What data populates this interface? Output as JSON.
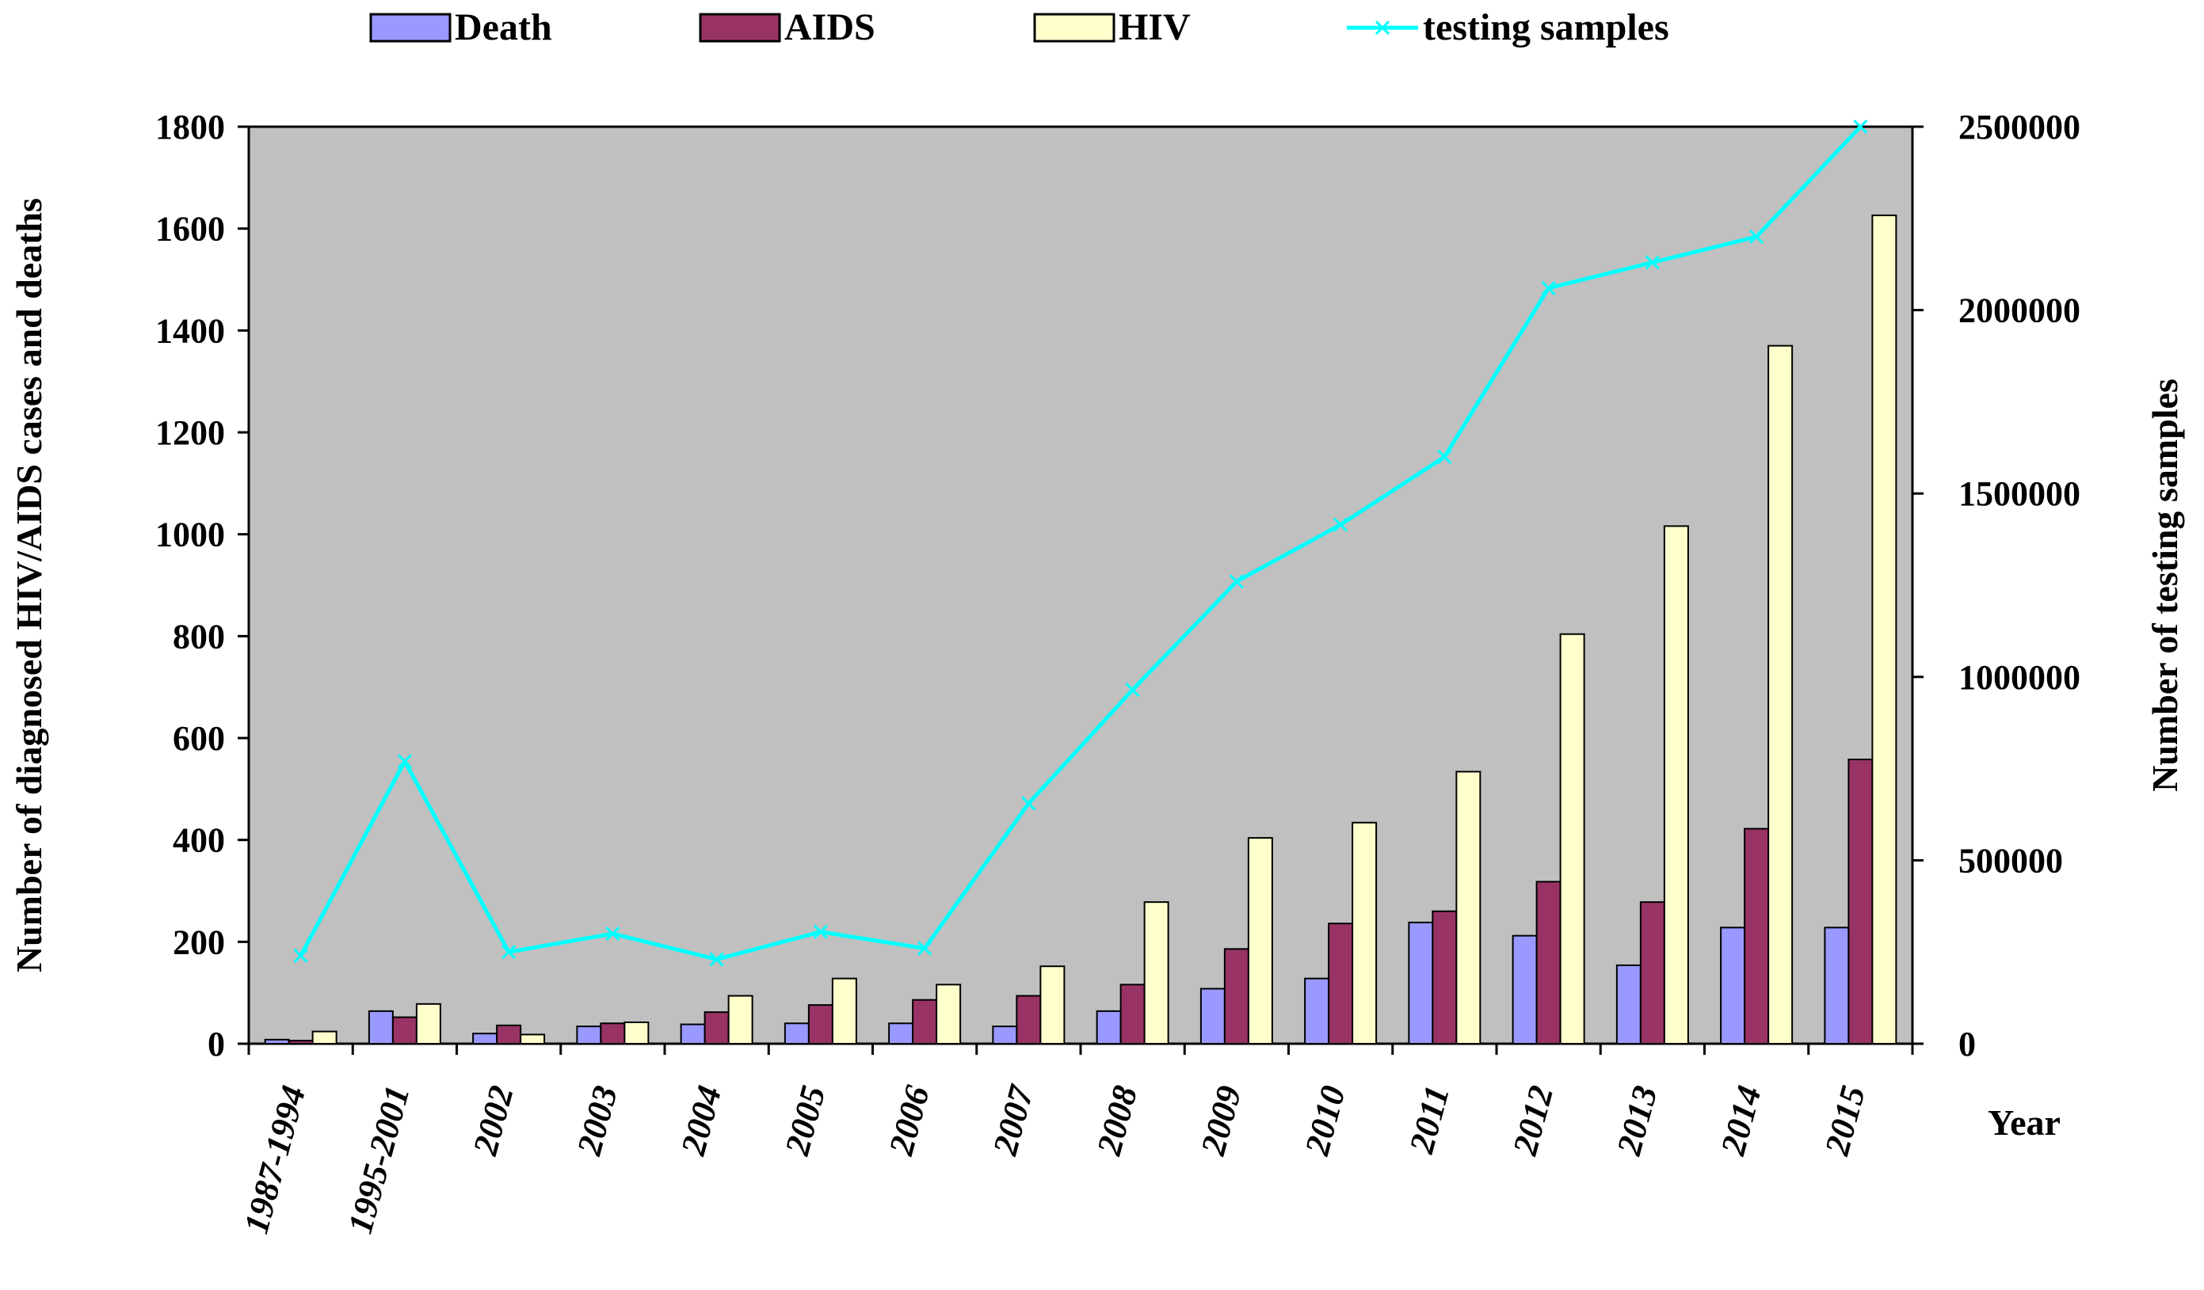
{
  "chart_data": {
    "type": "bar",
    "categories": [
      "1987-1994",
      "1995-2001",
      "2002",
      "2003",
      "2004",
      "2005",
      "2006",
      "2007",
      "2008",
      "2009",
      "2010",
      "2011",
      "2012",
      "2013",
      "2014",
      "2015"
    ],
    "series": [
      {
        "name": "Death",
        "axis": "left",
        "kind": "bar",
        "color": "#9999FF",
        "values": [
          8,
          64,
          20,
          34,
          38,
          40,
          40,
          34,
          64,
          108,
          128,
          238,
          212,
          154,
          228,
          228
        ]
      },
      {
        "name": "AIDS",
        "axis": "left",
        "kind": "bar",
        "color": "#993366",
        "values": [
          6,
          52,
          36,
          40,
          62,
          76,
          86,
          94,
          116,
          186,
          236,
          260,
          318,
          278,
          422,
          558
        ]
      },
      {
        "name": "HIV",
        "axis": "left",
        "kind": "bar",
        "color": "#FFFFCC",
        "values": [
          24,
          78,
          18,
          42,
          94,
          128,
          116,
          152,
          278,
          404,
          434,
          534,
          804,
          1016,
          1370,
          1626
        ]
      },
      {
        "name": "testing samples",
        "axis": "right",
        "kind": "line",
        "color": "#00FFFF",
        "values": [
          240000,
          770000,
          250000,
          300000,
          230000,
          305000,
          260000,
          655000,
          965000,
          1260000,
          1415000,
          1600000,
          2060000,
          2130000,
          2200000,
          2500000
        ]
      }
    ],
    "title": "",
    "xlabel": "Year",
    "ylabel": "Number of diagnosed HIV/AIDS cases and deaths",
    "y2label": "Number of testing samples",
    "ylim": [
      0,
      1800
    ],
    "y2lim": [
      0,
      2500000
    ],
    "yticks": [
      "0",
      "200",
      "400",
      "600",
      "800",
      "1000",
      "1200",
      "1400",
      "1600",
      "1800"
    ],
    "y2ticks": [
      "0",
      "500000",
      "1000000",
      "1500000",
      "2000000",
      "2500000"
    ],
    "plot_background": "#C0C0C0",
    "grid": false,
    "legend_position": "top"
  }
}
